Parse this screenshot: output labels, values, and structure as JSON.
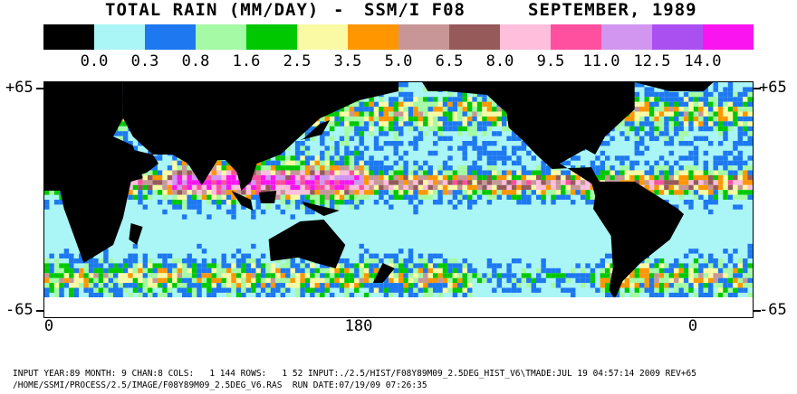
{
  "title": {
    "left": "TOTAL RAIN (MM/DAY)",
    "sep": "-",
    "instrument": "SSM/I F08",
    "date": "SEPTEMBER, 1989"
  },
  "legend": {
    "colors": [
      "#000000",
      "#aaf5f5",
      "#1e78f0",
      "#a5faa5",
      "#00c800",
      "#fafaa5",
      "#ff9600",
      "#c89696",
      "#965a5a",
      "#ffbedc",
      "#ff50a0",
      "#d296f0",
      "#aa50f0",
      "#fa14f0"
    ],
    "labels": [
      "0.0",
      "0.3",
      "0.8",
      "1.6",
      "2.5",
      "3.5",
      "5.0",
      "6.5",
      "8.0",
      "9.5",
      "11.0",
      "12.5",
      "14.0"
    ]
  },
  "axes": {
    "lat_top": "+65",
    "lat_bottom": "-65",
    "lon_labels": [
      "0",
      "180",
      "0"
    ]
  },
  "map_colors": {
    "land": "#000000",
    "ocean_dry": "#aaf5f5",
    "low": "#1e78f0",
    "light": "#a5faa5",
    "moderate": "#00c800",
    "mid": "#fafaa5",
    "heavy": "#ff9600",
    "wet": "#c89696",
    "wetter": "#965a5a",
    "very_wet": "#ffbedc",
    "intense": "#ff50a0",
    "extreme": "#d296f0",
    "max": "#fa14f0",
    "ice": "#ffffff"
  },
  "footer": {
    "line1": "INPUT YEAR:89 MONTH: 9 CHAN:8 COLS:   1 144 ROWS:   1 52 INPUT:./2.5/HIST/F08Y89M09_2.5DEG_HIST_V6\\TMADE:JUL 19 04:57:14 2009 REV+65",
    "line2": "/HOME/SSMI/PROCESS/2.5/IMAGE/F08Y89M09_2.5DEG_V6.RAS  RUN DATE:07/19/09 07:26:35"
  }
}
